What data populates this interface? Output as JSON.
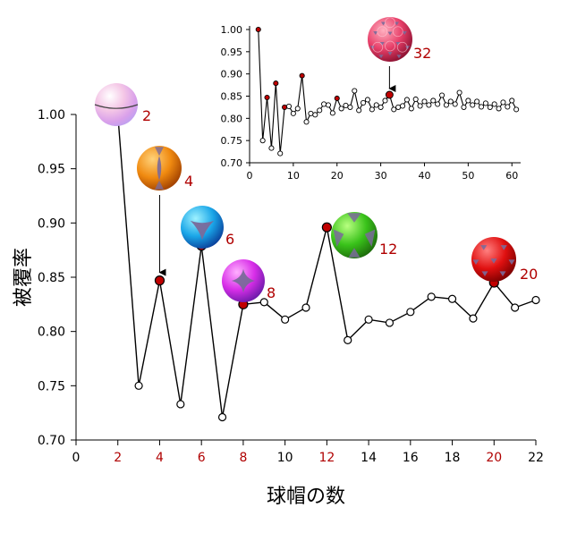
{
  "chart_data": [
    {
      "type": "line",
      "xlabel": "球帽の数",
      "ylabel": "被覆率",
      "xlim": [
        0,
        22
      ],
      "ylim": [
        0.7,
        1.0
      ],
      "x_ticks": [
        "0",
        "2",
        "4",
        "6",
        "8",
        "10",
        "12",
        "14",
        "16",
        "18",
        "20",
        "22"
      ],
      "y_ticks": [
        "0.70",
        "0.75",
        "0.80",
        "0.85",
        "0.90",
        "0.95",
        "1.00"
      ],
      "highlighted_x": [
        2,
        4,
        6,
        8,
        12,
        20
      ],
      "highlight_color": "#b00000",
      "series": [
        {
          "x": [
            2,
            3,
            4,
            5,
            6,
            7,
            8,
            9,
            10,
            11,
            12,
            13,
            14,
            15,
            16,
            17,
            18,
            19,
            20,
            21,
            22
          ],
          "values": [
            1.0,
            0.75,
            0.847,
            0.733,
            0.879,
            0.721,
            0.825,
            0.827,
            0.811,
            0.822,
            0.896,
            0.792,
            0.811,
            0.808,
            0.818,
            0.832,
            0.83,
            0.812,
            0.845,
            0.822,
            0.829
          ]
        }
      ],
      "annotations": [
        {
          "label": "2",
          "x": 2,
          "color": "pink-white"
        },
        {
          "label": "4",
          "x": 4,
          "color": "orange"
        },
        {
          "label": "6",
          "x": 6,
          "color": "blue"
        },
        {
          "label": "8",
          "x": 8,
          "color": "magenta"
        },
        {
          "label": "12",
          "x": 12,
          "color": "green"
        },
        {
          "label": "20",
          "x": 20,
          "color": "red"
        }
      ]
    },
    {
      "type": "line",
      "xlim": [
        0,
        62
      ],
      "ylim": [
        0.7,
        1.0
      ],
      "x_ticks": [
        "0",
        "10",
        "20",
        "30",
        "40",
        "50",
        "60"
      ],
      "y_ticks": [
        "0.70",
        "0.75",
        "0.80",
        "0.85",
        "0.90",
        "0.95",
        "1.00"
      ],
      "highlighted_x": [
        2,
        4,
        6,
        8,
        12,
        20,
        32
      ],
      "series": [
        {
          "x": [
            2,
            3,
            4,
            5,
            6,
            7,
            8,
            9,
            10,
            11,
            12,
            13,
            14,
            15,
            16,
            17,
            18,
            19,
            20,
            21,
            22,
            23,
            24,
            25,
            26,
            27,
            28,
            29,
            30,
            31,
            32,
            33,
            34,
            35,
            36,
            37,
            38,
            39,
            40,
            41,
            42,
            43,
            44,
            45,
            46,
            47,
            48,
            49,
            50,
            51,
            52,
            53,
            54,
            55,
            56,
            57,
            58,
            59,
            60,
            61
          ],
          "values": [
            1.0,
            0.75,
            0.847,
            0.733,
            0.879,
            0.721,
            0.825,
            0.827,
            0.811,
            0.822,
            0.896,
            0.792,
            0.811,
            0.808,
            0.818,
            0.832,
            0.83,
            0.812,
            0.845,
            0.822,
            0.829,
            0.825,
            0.862,
            0.818,
            0.835,
            0.842,
            0.82,
            0.83,
            0.825,
            0.84,
            0.853,
            0.82,
            0.825,
            0.828,
            0.842,
            0.822,
            0.843,
            0.828,
            0.838,
            0.83,
            0.84,
            0.832,
            0.852,
            0.83,
            0.838,
            0.832,
            0.858,
            0.825,
            0.84,
            0.83,
            0.838,
            0.826,
            0.834,
            0.825,
            0.832,
            0.822,
            0.836,
            0.826,
            0.84,
            0.82
          ]
        }
      ],
      "annotations": [
        {
          "label": "32",
          "x": 32,
          "color": "red"
        }
      ]
    }
  ]
}
